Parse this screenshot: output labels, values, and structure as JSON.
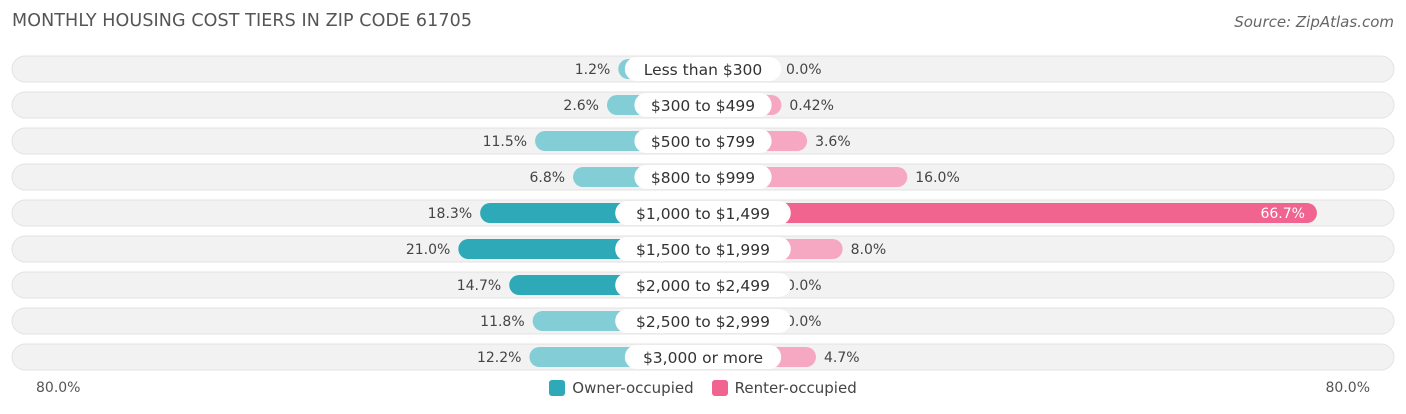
{
  "title": "MONTHLY HOUSING COST TIERS IN ZIP CODE 61705",
  "source": "Source: ZipAtlas.com",
  "colors": {
    "owner_light": "#82cdd6",
    "owner_strong": "#2ea9b8",
    "renter_light": "#f6a8c2",
    "renter_strong": "#f0648f",
    "track_bg": "#f2f2f2"
  },
  "chart_data": {
    "type": "bar",
    "orientation": "horizontal-diverging",
    "categories": [
      "Less than $300",
      "$300 to $499",
      "$500 to $799",
      "$800 to $999",
      "$1,000 to $1,499",
      "$1,500 to $1,999",
      "$2,000 to $2,499",
      "$2,500 to $2,999",
      "$3,000 or more"
    ],
    "series": [
      {
        "name": "Owner-occupied",
        "values": [
          1.2,
          2.6,
          11.5,
          6.8,
          18.3,
          21.0,
          14.7,
          11.8,
          12.2
        ],
        "labels": [
          "1.2%",
          "2.6%",
          "11.5%",
          "6.8%",
          "18.3%",
          "21.0%",
          "14.7%",
          "11.8%",
          "12.2%"
        ]
      },
      {
        "name": "Renter-occupied",
        "values": [
          0.0,
          0.42,
          3.6,
          16.0,
          66.7,
          8.0,
          0.0,
          0.0,
          4.7
        ],
        "labels": [
          "0.0%",
          "0.42%",
          "3.6%",
          "16.0%",
          "66.7%",
          "8.0%",
          "0.0%",
          "0.0%",
          "4.7%"
        ]
      }
    ],
    "xlim": [
      -80,
      80
    ],
    "axis_min_label": "80.0%",
    "axis_max_label": "80.0%",
    "legend_position": "bottom-center"
  }
}
